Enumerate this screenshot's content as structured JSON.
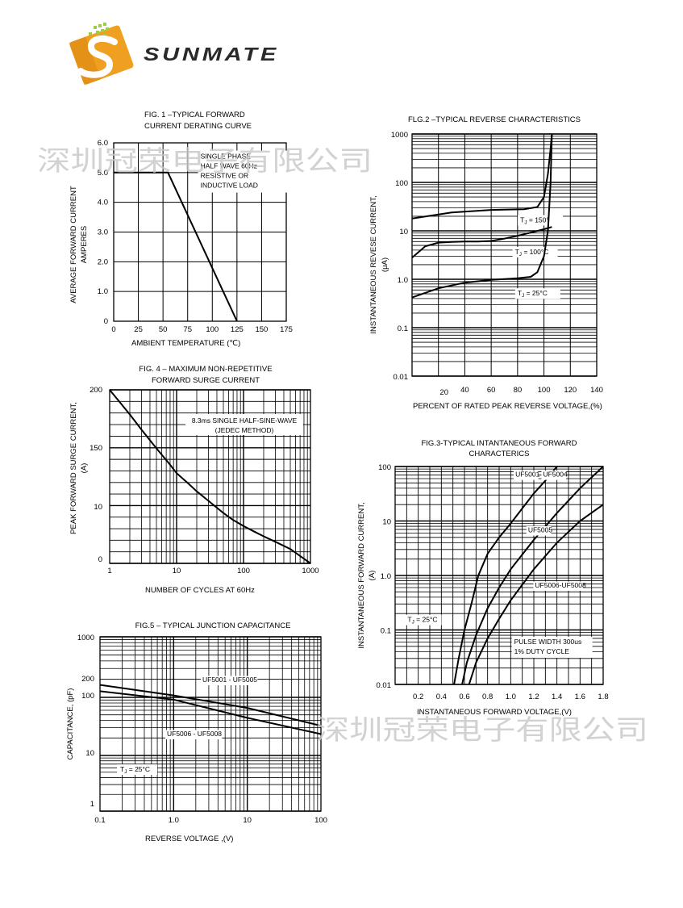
{
  "brand": {
    "wordmark": "SUNMATE",
    "colors": {
      "logo_orange": "#f0a020",
      "logo_dark": "#d07810",
      "logo_green": "#9ccc48",
      "wordmark": "#2a2a2a"
    }
  },
  "watermark": {
    "text": "深圳冠荣电子有限公司",
    "color": "#c8c8c8"
  },
  "chart_data": [
    {
      "id": "fig1",
      "type": "line",
      "title": [
        "FIG. 1 –TYPICAL FORWARD",
        "CURRENT DERATING CURVE"
      ],
      "xlabel": "AMBIENT TEMPERATURE  (℃)",
      "ylabel": [
        "AVERAGE FORWARD CURRENT",
        "AMPERES"
      ],
      "xlim": [
        0,
        175
      ],
      "ylim": [
        0,
        6
      ],
      "x_ticks": [
        0,
        25,
        50,
        75,
        100,
        125,
        150,
        175
      ],
      "x_tick_labels": [
        "0",
        "25",
        "50",
        "75",
        "100",
        "125",
        "150",
        "175"
      ],
      "y_ticks": [
        0,
        1,
        2,
        3,
        4,
        5,
        6
      ],
      "y_tick_labels": [
        "0",
        "1.0",
        "2.0",
        "3.0",
        "4.0",
        "5.0",
        "6.0"
      ],
      "grid": true,
      "annotations": [
        {
          "lines": [
            "SINGLE PHASE",
            "HALF WAVE 60Hz",
            "RESISTIVE OR",
            "INDUCTIVE LOAD"
          ],
          "x": 88,
          "y": 5.55
        }
      ],
      "series": [
        {
          "x": [
            0,
            55,
            125
          ],
          "y": [
            5,
            5,
            0
          ]
        }
      ]
    },
    {
      "id": "fig2",
      "type": "line",
      "title": [
        "FLG.2 –TYPICAL REVERSE  CHARACTERISTICS"
      ],
      "xlabel": "PERCENT OF RATED PEAK REVERSE VOLTAGE,(%)",
      "ylabel": [
        "INSTANTANEOUS   REVESE CURRENT,",
        "(μA)"
      ],
      "xlim": [
        0,
        140
      ],
      "ylim": [
        0.01,
        1000
      ],
      "yscale": "log",
      "x_ticks": [
        20,
        40,
        60,
        80,
        100,
        120,
        140
      ],
      "x_tick_labels": [
        "20",
        "40",
        "60",
        "80",
        "100",
        "120",
        "140"
      ],
      "y_ticks": [
        0.01,
        0.1,
        1,
        10,
        100,
        1000
      ],
      "y_tick_labels": [
        "0.01",
        "0.1",
        "1.0",
        "10",
        "100",
        "1000"
      ],
      "grid": true,
      "series": [
        {
          "name": "TJ = 150°",
          "label": [
            "T",
            "J",
            " = 150°"
          ],
          "label_at": [
            82,
            15
          ],
          "x": [
            0,
            30,
            60,
            85,
            95,
            100,
            103,
            105,
            106
          ],
          "y": [
            18,
            24,
            27,
            28,
            31,
            50,
            150,
            500,
            1000
          ]
        },
        {
          "name": "TJ = 100°C",
          "label": [
            "T",
            "J",
            " = 100°C"
          ],
          "label_at": [
            78,
            3.3
          ],
          "x": [
            0,
            10,
            20,
            30,
            40,
            50,
            60,
            70,
            80,
            90,
            100,
            106
          ],
          "y": [
            2.8,
            4.8,
            5.7,
            5.9,
            6.0,
            6.0,
            6.2,
            6.9,
            7.9,
            9.2,
            10.8,
            12
          ]
        },
        {
          "name": "TJ = 25°C",
          "label": [
            "T",
            "J",
            " = 25°C"
          ],
          "label_at": [
            80,
            0.46
          ],
          "x": [
            0,
            20,
            40,
            60,
            80,
            90,
            95,
            100,
            103,
            105,
            106
          ],
          "y": [
            0.42,
            0.65,
            0.85,
            0.97,
            1.05,
            1.12,
            1.4,
            3,
            10,
            100,
            1000
          ]
        }
      ]
    },
    {
      "id": "fig4",
      "type": "line",
      "title": [
        "FIG. 4 – MAXIMUM NON-REPETITIVE",
        "FORWARD  SURGE CURRENT"
      ],
      "xlabel": "NUMBER OF CYCLES AT 60Hz",
      "ylabel": [
        "PEAK FORWARD SURGE CURRENT,",
        "(A)"
      ],
      "xlim": [
        1,
        1000
      ],
      "xscale": "log",
      "x_ticks": [
        1,
        10,
        100,
        1000
      ],
      "x_tick_labels": [
        "1",
        "10",
        "100",
        "1000"
      ],
      "y_ticks": [
        "0",
        "10",
        "150",
        "200"
      ],
      "grid": true,
      "annotations": [
        {
          "lines": [
            "8.3ms SINGLE HALF-SINE-WAVE",
            "(JEDEC METHOD)"
          ]
        }
      ],
      "series": [
        {
          "x": [
            1,
            2,
            3,
            5,
            8,
            10,
            15,
            20,
            30,
            50,
            70,
            100,
            150,
            200,
            300,
            500,
            700,
            1000
          ],
          "y_frac": [
            1.0,
            0.858,
            0.77,
            0.663,
            0.568,
            0.52,
            0.46,
            0.415,
            0.36,
            0.29,
            0.25,
            0.215,
            0.18,
            0.156,
            0.124,
            0.083,
            0.043,
            0.0
          ]
        }
      ]
    },
    {
      "id": "fig3",
      "type": "line",
      "title": [
        "FIG.3-TYPICAL INTANTANEOUS FORWARD",
        "CHARACTERICS"
      ],
      "xlabel": "INSTANTANEOUS FORWARD VOLTAGE,(V)",
      "ylabel": [
        "INSTANTANEOUS FORWARD CURRENT,",
        "(A)"
      ],
      "xlim": [
        0,
        1.8
      ],
      "ylim": [
        0.01,
        100
      ],
      "yscale": "log",
      "x_ticks": [
        0.2,
        0.4,
        0.6,
        0.8,
        1.0,
        1.2,
        1.4,
        1.6,
        1.8
      ],
      "x_tick_labels": [
        "0.2",
        "0.4",
        "0.6",
        "0.8",
        "1.0",
        "1.2",
        "1.4",
        "1.6",
        "1.8"
      ],
      "y_ticks": [
        0.01,
        0.1,
        1,
        10,
        100
      ],
      "y_tick_labels": [
        "0.01",
        "0.1",
        "1.0",
        "10",
        "100"
      ],
      "grid": true,
      "annotations": [
        {
          "lines": [
            "T",
            "J",
            " = 25°C"
          ],
          "x": 0.01,
          "y": 0.14,
          "subscript": true
        },
        {
          "lines": [
            "PULSE WIDTH 300us",
            "1% DUTY CYCLE"
          ],
          "x": 1.03,
          "y": 0.055
        }
      ],
      "series": [
        {
          "name": "UF5001",
          "label": "UF5001",
          "label_at": [
            1.04,
            65
          ],
          "x": [
            0.51,
            0.55,
            0.6,
            0.66,
            0.72,
            0.8,
            0.9,
            1.0,
            1.1,
            1.2,
            1.3,
            1.4
          ],
          "y": [
            0.01,
            0.03,
            0.1,
            0.3,
            1,
            2.5,
            5,
            9,
            17,
            32,
            55,
            100
          ]
        },
        {
          "name": "UF5004",
          "label": "UF5004",
          "label_at": [
            1.28,
            65
          ],
          "x": [
            0.51,
            0.55,
            0.6,
            0.66,
            0.72,
            0.8,
            0.9,
            1.0,
            1.1,
            1.2,
            1.3,
            1.4
          ],
          "y": [
            0.01,
            0.03,
            0.1,
            0.3,
            1,
            2.5,
            5,
            9,
            17,
            32,
            55,
            100
          ]
        },
        {
          "name": "UF5005",
          "label": "UF5005",
          "label_at": [
            1.15,
            6.2
          ],
          "x": [
            0.58,
            0.62,
            0.7,
            0.8,
            0.9,
            1.0,
            1.2,
            1.4,
            1.6,
            1.8
          ],
          "y": [
            0.01,
            0.025,
            0.08,
            0.25,
            0.6,
            1.3,
            4.5,
            14,
            40,
            100
          ]
        },
        {
          "name": "UF5006-UF5008",
          "label": "UF5006-UF5008",
          "label_at": [
            1.21,
            0.6
          ],
          "x": [
            0.64,
            0.7,
            0.8,
            0.9,
            1.0,
            1.2,
            1.4,
            1.6,
            1.8
          ],
          "y": [
            0.01,
            0.025,
            0.07,
            0.16,
            0.35,
            1.3,
            4,
            10,
            20
          ]
        }
      ]
    },
    {
      "id": "fig5",
      "type": "line",
      "title": [
        "FIG.5 – TYPICAL JUNCTION CAPACITANCE"
      ],
      "xlabel": "REVERSE VOLTAGE ,(V)",
      "ylabel": [
        "CAPACITANCE, (pF)"
      ],
      "xlim": [
        0.1,
        100
      ],
      "xscale": "log",
      "x_ticks": [
        0.1,
        1,
        10,
        100
      ],
      "x_tick_labels": [
        "0.1",
        "1.0",
        "10",
        "100"
      ],
      "y_ticks": [
        "1",
        "10",
        "100",
        "200",
        "1000"
      ],
      "grid": true,
      "annotations": [
        {
          "lines": [
            "T",
            "J",
            " = 25°C"
          ],
          "subscript": true
        }
      ],
      "series": [
        {
          "name": "UF5001 - UF5005",
          "label": "UF5001 - UF5005",
          "x": [
            0.1,
            1,
            10,
            100
          ],
          "y_frac": [
            0.724,
            0.664,
            0.592,
            0.49
          ]
        },
        {
          "name": "UF5006 - UF5008",
          "label": "UF5006 - UF5008",
          "x": [
            0.1,
            1,
            10,
            100
          ],
          "y_frac": [
            0.688,
            0.64,
            0.535,
            0.442
          ]
        }
      ]
    }
  ]
}
